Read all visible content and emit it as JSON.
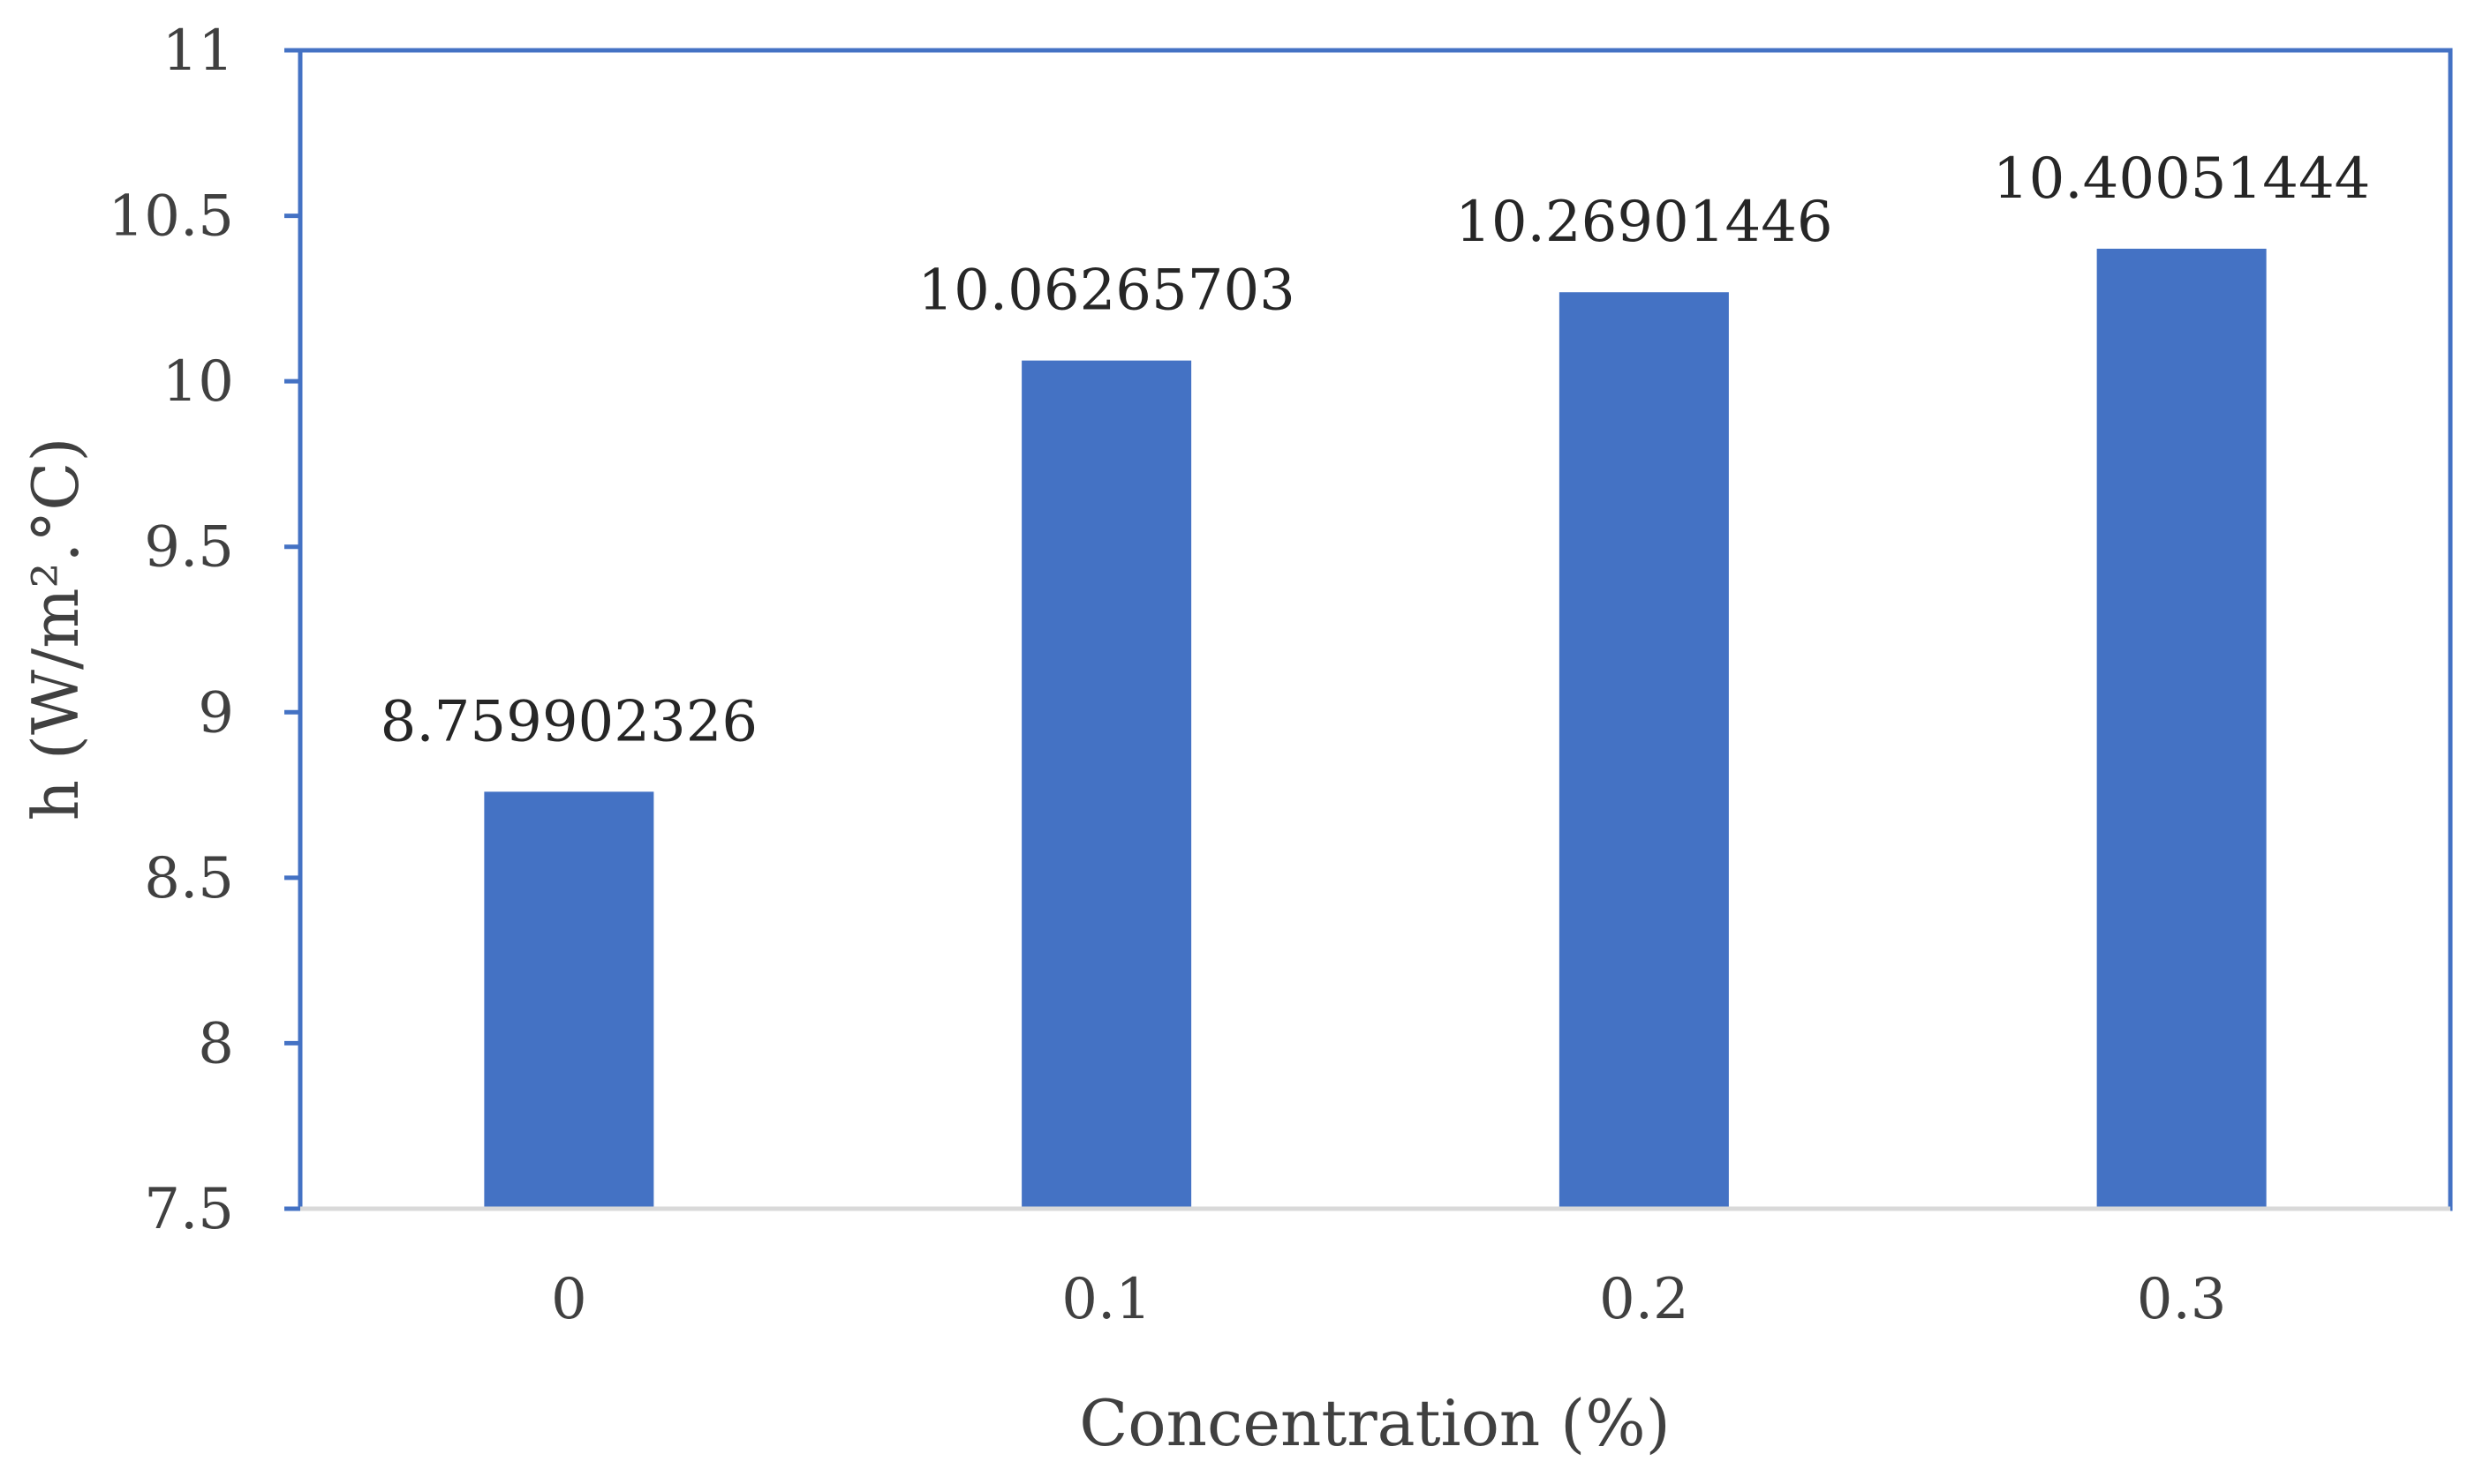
{
  "chart_data": {
    "type": "bar",
    "categories": [
      "0",
      "0.1",
      "0.2",
      "0.3"
    ],
    "values": [
      8.759902326,
      10.06265703,
      10.26901446,
      10.40051444
    ],
    "data_labels": [
      "8.759902326",
      "10.06265703",
      "10.26901446",
      "10.40051444"
    ],
    "xlabel": "Concentration (%)",
    "ylabel": "h (W/m².°C)",
    "ylim": [
      7.5,
      11
    ],
    "yticks": [
      7.5,
      8,
      8.5,
      9,
      9.5,
      10,
      10.5,
      11
    ],
    "ytick_labels": [
      "7.5",
      "8",
      "8.5",
      "9",
      "9.5",
      "10",
      "10.5",
      "11"
    ],
    "grid": false,
    "legend": "none",
    "colors": {
      "bar": "#4472C4",
      "frame": "#4472C4",
      "x_axis_line": "#D9D9D9",
      "text": "#404040"
    }
  }
}
